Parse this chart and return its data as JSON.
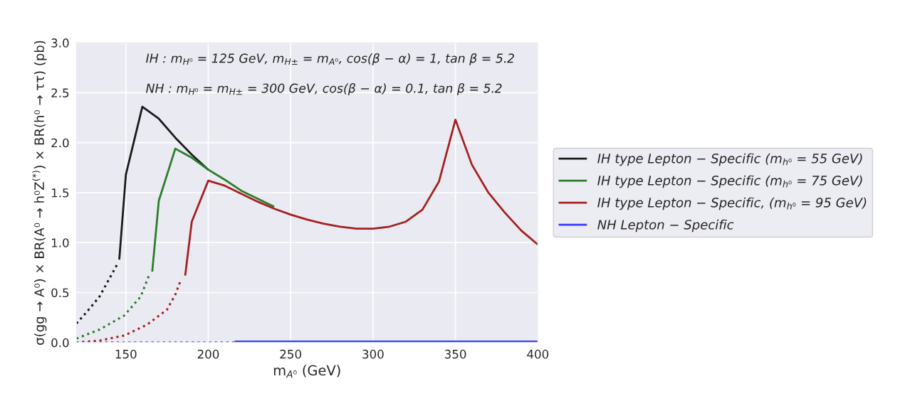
{
  "chart_data": {
    "type": "line",
    "xlabel": "m$_{A⁰}$ (GeV)",
    "ylabel": "σ(gg → A⁰) × BR(A⁰ → h⁰Z$^{(*)}$) × BR(h⁰ → ττ) (pb)",
    "annotations": [
      "IH : m$_{H⁰}$ = 125 GeV, m$_{H±}$ = m$_{A⁰}$, cos(β − α) = 1, tan β = 5.2",
      "NH : m$_{H⁰}$ = m$_{H±}$ = 300 GeV, cos(β − α) = 0.1, tan β = 5.2"
    ],
    "xlim": [
      120,
      400
    ],
    "xticks": [
      150,
      200,
      250,
      300,
      350,
      400
    ],
    "ylim": [
      0,
      3.0
    ],
    "yticks": [
      {
        "value": 0,
        "label": "0.0"
      },
      0.5,
      {
        "value": 1,
        "label": "1.0"
      },
      1.5,
      {
        "value": 2,
        "label": "2.0"
      },
      2.5,
      {
        "value": 3,
        "label": "3.0"
      }
    ],
    "grid": true,
    "legend": "right",
    "series": [
      {
        "name": "IH type Lepton − Specific (m$_{h⁰}$ = 55 GeV)",
        "color": "#1a1a1a",
        "line_style": "solid",
        "x": [
          146,
          150,
          160,
          170,
          180,
          190,
          200
        ],
        "values": [
          0.83,
          1.68,
          2.36,
          2.24,
          2.05,
          1.88,
          1.73
        ]
      },
      {
        "name": "IH type Lepton − Specific (m$_{h⁰}$ = 75 GeV)",
        "color": "#2a7d2a",
        "line_style": "solid",
        "x": [
          166,
          170,
          180,
          190,
          200,
          210,
          220,
          230,
          240
        ],
        "values": [
          0.71,
          1.42,
          1.94,
          1.85,
          1.73,
          1.63,
          1.52,
          1.44,
          1.36
        ]
      },
      {
        "name": "IH type Lepton − Specific, (m$_{h⁰}$ = 95 GeV)",
        "color": "#a52020",
        "line_style": "solid",
        "x": [
          186,
          190,
          200,
          210,
          220,
          230,
          240,
          250,
          260,
          270,
          280,
          290,
          300,
          310,
          320,
          330,
          340,
          350,
          360,
          370,
          380,
          390,
          400
        ],
        "values": [
          0.67,
          1.21,
          1.62,
          1.57,
          1.49,
          1.41,
          1.34,
          1.28,
          1.23,
          1.19,
          1.16,
          1.14,
          1.14,
          1.16,
          1.21,
          1.33,
          1.61,
          2.23,
          1.78,
          1.5,
          1.3,
          1.12,
          0.98
        ]
      },
      {
        "name": "NH Lepton − Specific",
        "color": "#3b3bff",
        "line_style": "solid",
        "x": [
          216,
          400
        ],
        "values": [
          0.01,
          0.01
        ]
      },
      {
        "color": "#1a1a1a",
        "line_style": "dotted",
        "x": [
          120,
          127,
          134,
          140,
          145
        ],
        "values": [
          0.19,
          0.32,
          0.46,
          0.64,
          0.79
        ]
      },
      {
        "color": "#2a7d2a",
        "line_style": "dotted",
        "x": [
          120,
          134,
          149,
          159,
          164
        ],
        "values": [
          0.04,
          0.13,
          0.27,
          0.46,
          0.67
        ]
      },
      {
        "color": "#a52020",
        "line_style": "dotted",
        "x": [
          120,
          134,
          149,
          163,
          175,
          180,
          183
        ],
        "values": [
          0.0,
          0.02,
          0.07,
          0.18,
          0.33,
          0.48,
          0.61
        ]
      },
      {
        "color": "#3b3bff",
        "line_style": "dotted",
        "x": [
          120,
          216
        ],
        "values": [
          0.0,
          0.0
        ]
      }
    ]
  }
}
